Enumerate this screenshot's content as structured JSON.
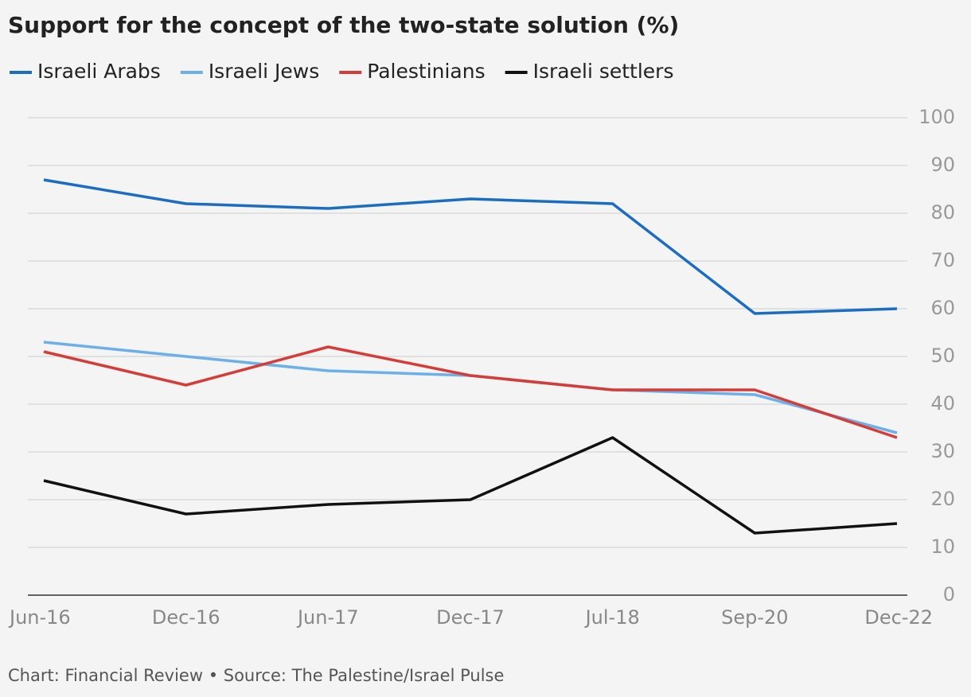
{
  "chart_data": {
    "type": "line",
    "title": "Support for the concept of the two-state solution (%)",
    "categories": [
      "Jun-16",
      "Dec-16",
      "Jun-17",
      "Dec-17",
      "Jul-18",
      "Sep-20",
      "Dec-22"
    ],
    "series": [
      {
        "name": "Israeli Arabs",
        "color": "#1a6dc2",
        "values": [
          87,
          82,
          81,
          83,
          82,
          59,
          60
        ]
      },
      {
        "name": "Israeli Jews",
        "color": "#6cb0ea",
        "values": [
          53,
          50,
          47,
          46,
          43,
          42,
          34
        ]
      },
      {
        "name": "Palestinians",
        "color": "#d63c37",
        "values": [
          51,
          44,
          52,
          46,
          43,
          43,
          33
        ]
      },
      {
        "name": "Israeli settlers",
        "color": "#111111",
        "values": [
          24,
          17,
          19,
          20,
          33,
          13,
          15
        ]
      }
    ],
    "ylim": [
      0,
      100
    ],
    "yticks": [
      0,
      10,
      20,
      30,
      40,
      50,
      60,
      70,
      80,
      90,
      100
    ],
    "grid": true,
    "source": "Chart: Financial Review • Source: The Palestine/Israel Pulse"
  }
}
